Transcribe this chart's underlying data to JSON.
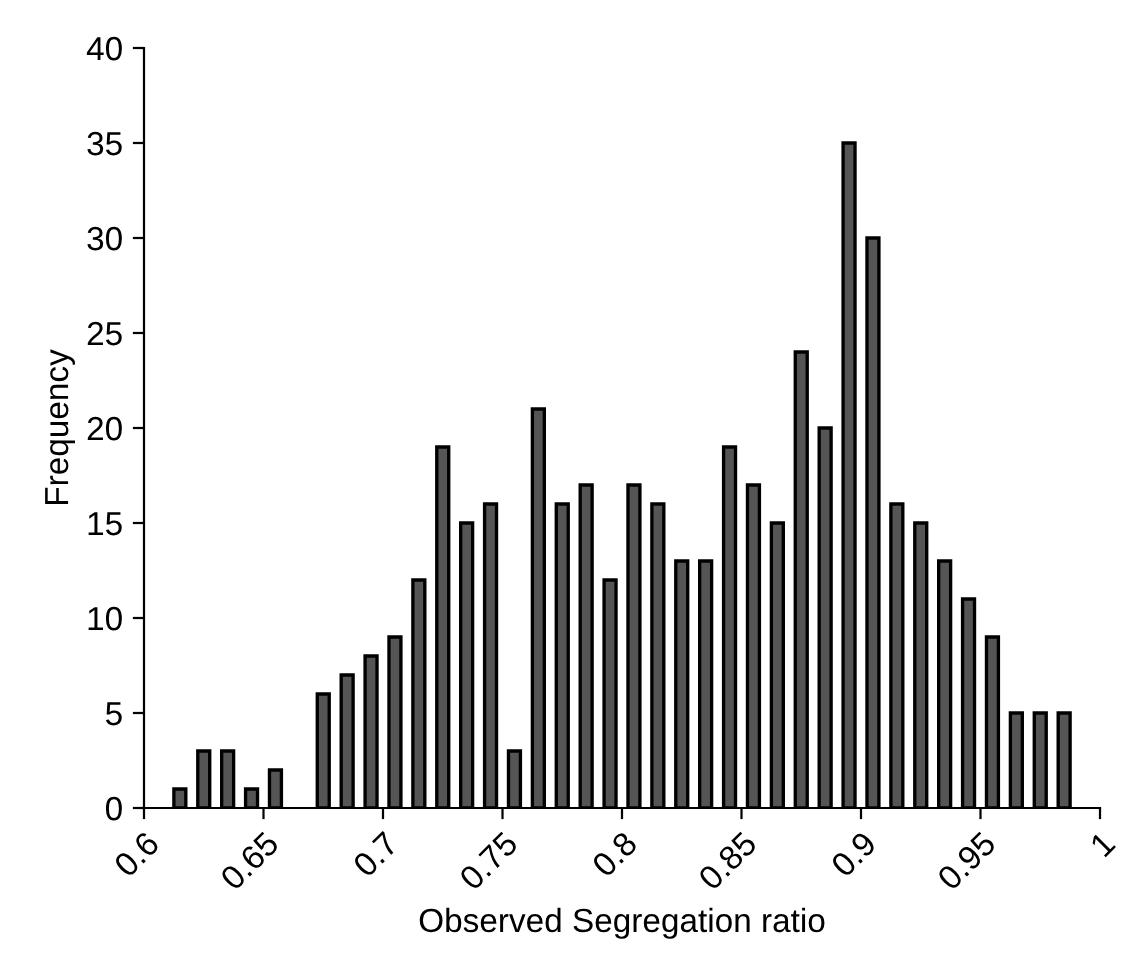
{
  "chart_data": {
    "type": "bar",
    "xlabel": "Observed Segregation ratio",
    "ylabel": "Frequency",
    "x": [
      0.615,
      0.625,
      0.635,
      0.645,
      0.655,
      0.665,
      0.675,
      0.685,
      0.695,
      0.705,
      0.715,
      0.725,
      0.735,
      0.745,
      0.755,
      0.765,
      0.775,
      0.785,
      0.795,
      0.805,
      0.815,
      0.825,
      0.835,
      0.845,
      0.855,
      0.865,
      0.875,
      0.885,
      0.895,
      0.905,
      0.915,
      0.925,
      0.935,
      0.945,
      0.955,
      0.965,
      0.975,
      0.985
    ],
    "values": [
      1,
      3,
      3,
      1,
      2,
      null,
      6,
      7,
      8,
      9,
      12,
      19,
      15,
      16,
      3,
      21,
      16,
      17,
      12,
      17,
      16,
      13,
      13,
      19,
      17,
      15,
      24,
      20,
      35,
      30,
      16,
      15,
      13,
      11,
      9,
      5,
      5,
      5
    ],
    "color": "#555555",
    "xlim": [
      0.6,
      1
    ],
    "xticks": [
      0.6,
      0.65,
      0.7,
      0.75,
      0.8,
      0.85,
      0.9,
      0.95,
      1
    ],
    "ylim": [
      0,
      40
    ],
    "yticks": [
      0,
      5,
      10,
      15,
      20,
      25,
      30,
      35,
      40
    ],
    "grid": false,
    "legend": false
  }
}
